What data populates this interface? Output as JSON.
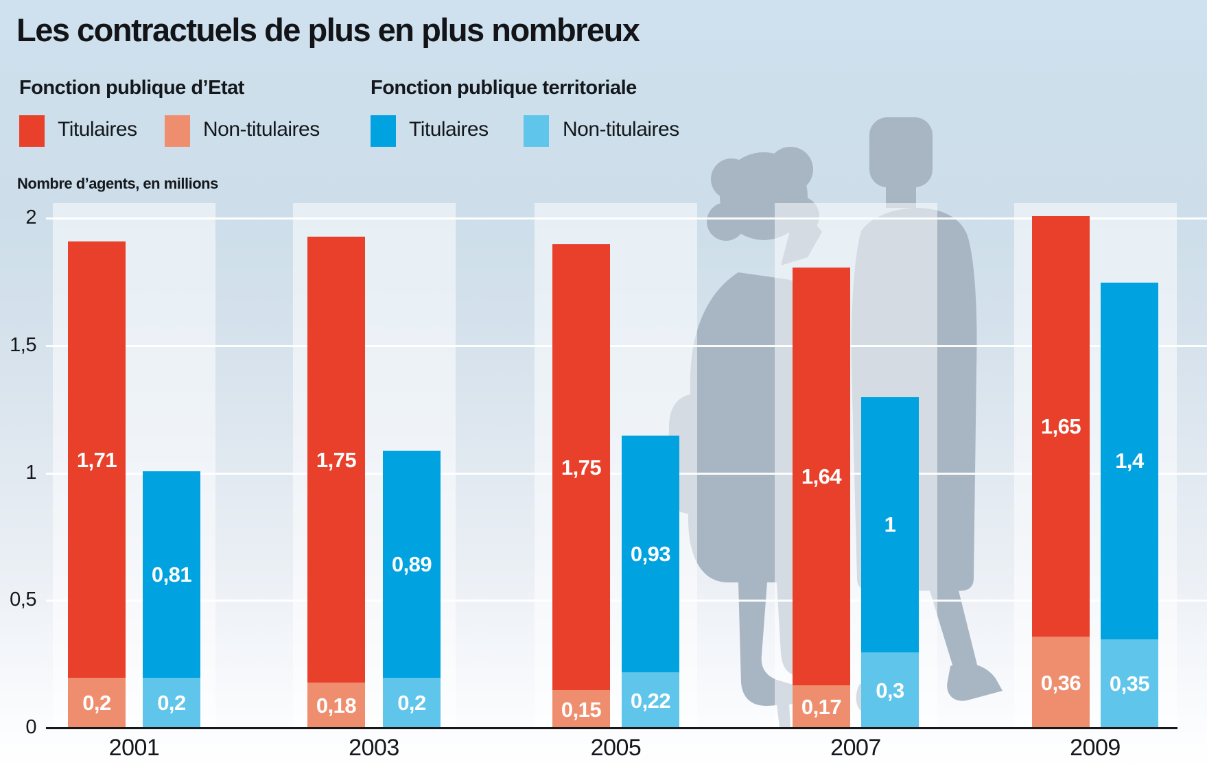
{
  "title": "Les contractuels de plus en plus nombreux",
  "axis_note": "Nombre d’agents, en millions",
  "colors": {
    "etat_titulaires": "#e8402a",
    "etat_non_titulaires": "#ef8e6e",
    "territoriale_titulaires": "#00a2e0",
    "territoriale_non_titulaires": "#5fc5ea",
    "silhouette": "#a8b5c3",
    "background_top": "#cfe0ee"
  },
  "legend": {
    "groups": [
      {
        "label": "Fonction publique d’Etat",
        "items": [
          {
            "label": "Titulaires",
            "color": "#e8402a"
          },
          {
            "label": "Non-titulaires",
            "color": "#ef8e6e"
          }
        ]
      },
      {
        "label": "Fonction publique territoriale",
        "items": [
          {
            "label": "Titulaires",
            "color": "#00a2e0"
          },
          {
            "label": "Non-titulaires",
            "color": "#5fc5ea"
          }
        ]
      }
    ]
  },
  "chart_data": {
    "type": "bar",
    "stacked": true,
    "categories": [
      "2001",
      "2003",
      "2005",
      "2007",
      "2009"
    ],
    "ylabel": "Nombre d’agents, en millions",
    "ylim": [
      0,
      2
    ],
    "grid": true,
    "yticks": [
      {
        "value": 2,
        "label": "2"
      },
      {
        "value": 1.5,
        "label": "1,5"
      },
      {
        "value": 1,
        "label": "1"
      },
      {
        "value": 0.5,
        "label": "0,5"
      },
      {
        "value": 0,
        "label": "0"
      }
    ],
    "series": [
      {
        "name": "Fonction publique d’Etat – Titulaires",
        "color": "#e8402a",
        "values": [
          1.71,
          1.75,
          1.75,
          1.64,
          1.65
        ],
        "labels": [
          "1,71",
          "1,75",
          "1,75",
          "1,64",
          "1,65"
        ]
      },
      {
        "name": "Fonction publique d’Etat – Non-titulaires",
        "color": "#ef8e6e",
        "values": [
          0.2,
          0.18,
          0.15,
          0.17,
          0.36
        ],
        "labels": [
          "0,2",
          "0,18",
          "0,15",
          "0,17",
          "0,36"
        ]
      },
      {
        "name": "Fonction publique territoriale – Titulaires",
        "color": "#00a2e0",
        "values": [
          0.81,
          0.89,
          0.93,
          1,
          1.4
        ],
        "labels": [
          "0,81",
          "0,89",
          "0,93",
          "1",
          "1,4"
        ]
      },
      {
        "name": "Fonction publique territoriale – Non-titulaires",
        "color": "#5fc5ea",
        "values": [
          0.2,
          0.2,
          0.22,
          0.3,
          0.35
        ],
        "labels": [
          "0,2",
          "0,2",
          "0,22",
          "0,3",
          "0,35"
        ]
      }
    ]
  }
}
